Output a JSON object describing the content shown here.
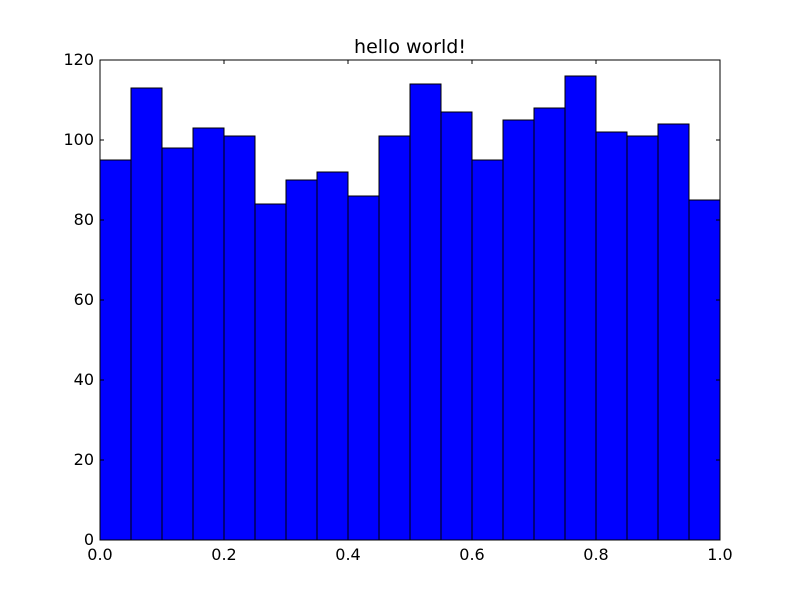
{
  "chart_data": {
    "type": "bar",
    "title": "hello world!",
    "xlabel": "",
    "ylabel": "",
    "bin_edges": [
      0.0,
      0.05,
      0.1,
      0.15,
      0.2,
      0.25,
      0.3,
      0.35,
      0.4,
      0.45,
      0.5,
      0.55,
      0.6,
      0.65,
      0.7,
      0.75,
      0.8,
      0.85,
      0.9,
      0.95,
      1.0
    ],
    "values": [
      95,
      113,
      98,
      103,
      101,
      84,
      90,
      92,
      86,
      101,
      114,
      107,
      95,
      105,
      108,
      116,
      102,
      101,
      104,
      85
    ],
    "xlim": [
      0.0,
      1.0
    ],
    "ylim": [
      0,
      120
    ],
    "x_ticks": [
      "0.0",
      "0.2",
      "0.4",
      "0.6",
      "0.8",
      "1.0"
    ],
    "y_ticks": [
      "0",
      "20",
      "40",
      "60",
      "80",
      "100",
      "120"
    ],
    "grid": false,
    "bar_color": "#0000ff",
    "edge_color": "#000000"
  }
}
